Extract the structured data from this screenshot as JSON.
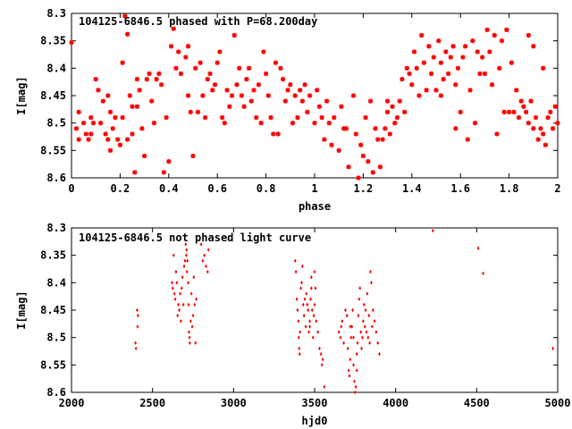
{
  "colors": {
    "points": "#ff0000",
    "axes": "#000000",
    "background": "#ffffff"
  },
  "chart_data": [
    {
      "type": "scatter",
      "title": "104125-6846.5 phased with P=68.200day",
      "xlabel": "phase",
      "ylabel": "I[mag]",
      "xlim": [
        0,
        2
      ],
      "ylim": [
        8.3,
        8.6
      ],
      "y_inverted": true,
      "grid": false,
      "marker": "star",
      "xticks": [
        "0",
        "0.2",
        "0.4",
        "0.6",
        "0.8",
        "1",
        "1.2",
        "1.4",
        "1.6",
        "1.8",
        "2"
      ],
      "yticks": [
        "8.3",
        "8.35",
        "8.4",
        "8.45",
        "8.5",
        "8.55",
        "8.6"
      ],
      "points": [
        [
          0.0,
          8.353
        ],
        [
          0.02,
          8.51
        ],
        [
          0.03,
          8.53
        ],
        [
          0.03,
          8.48
        ],
        [
          0.05,
          8.5
        ],
        [
          0.06,
          8.52
        ],
        [
          0.07,
          8.53
        ],
        [
          0.08,
          8.49
        ],
        [
          0.09,
          8.5
        ],
        [
          0.1,
          8.42
        ],
        [
          0.11,
          8.44
        ],
        [
          0.12,
          8.5
        ],
        [
          0.13,
          8.46
        ],
        [
          0.14,
          8.52
        ],
        [
          0.15,
          8.53
        ],
        [
          0.16,
          8.55
        ],
        [
          0.16,
          8.48
        ],
        [
          0.17,
          8.51
        ],
        [
          0.18,
          8.49
        ],
        [
          0.19,
          8.53
        ],
        [
          0.2,
          8.54
        ],
        [
          0.21,
          8.49
        ],
        [
          0.21,
          8.39
        ],
        [
          0.22,
          8.305
        ],
        [
          0.23,
          8.338
        ],
        [
          0.23,
          8.53
        ],
        [
          0.24,
          8.45
        ],
        [
          0.25,
          8.47
        ],
        [
          0.25,
          8.52
        ],
        [
          0.26,
          8.59
        ],
        [
          0.27,
          8.47
        ],
        [
          0.27,
          8.42
        ],
        [
          0.28,
          8.44
        ],
        [
          0.29,
          8.51
        ],
        [
          0.3,
          8.56
        ],
        [
          0.31,
          8.42
        ],
        [
          0.32,
          8.41
        ],
        [
          0.33,
          8.46
        ],
        [
          0.34,
          8.5
        ],
        [
          0.35,
          8.42
        ],
        [
          0.36,
          8.41
        ],
        [
          0.37,
          8.43
        ],
        [
          0.38,
          8.59
        ],
        [
          0.39,
          8.49
        ],
        [
          0.4,
          8.57
        ],
        [
          0.41,
          8.36
        ],
        [
          0.42,
          8.328
        ],
        [
          0.43,
          8.4
        ],
        [
          0.44,
          8.37
        ],
        [
          0.45,
          8.41
        ],
        [
          0.47,
          8.38
        ],
        [
          0.48,
          8.36
        ],
        [
          0.49,
          8.48
        ],
        [
          0.5,
          8.56
        ],
        [
          0.51,
          8.4
        ],
        [
          0.52,
          8.48
        ],
        [
          0.53,
          8.39
        ],
        [
          0.54,
          8.45
        ],
        [
          0.55,
          8.49
        ],
        [
          0.56,
          8.42
        ],
        [
          0.57,
          8.41
        ],
        [
          0.58,
          8.44
        ],
        [
          0.59,
          8.43
        ],
        [
          0.6,
          8.39
        ],
        [
          0.61,
          8.37
        ],
        [
          0.62,
          8.49
        ],
        [
          0.63,
          8.5
        ],
        [
          0.64,
          8.44
        ],
        [
          0.65,
          8.47
        ],
        [
          0.66,
          8.45
        ],
        [
          0.67,
          8.34
        ],
        [
          0.68,
          8.43
        ],
        [
          0.69,
          8.4
        ],
        [
          0.7,
          8.45
        ],
        [
          0.71,
          8.47
        ],
        [
          0.72,
          8.42
        ],
        [
          0.73,
          8.4
        ],
        [
          0.74,
          8.46
        ],
        [
          0.75,
          8.44
        ],
        [
          0.76,
          8.49
        ],
        [
          0.77,
          8.43
        ],
        [
          0.78,
          8.5
        ],
        [
          0.79,
          8.37
        ],
        [
          0.8,
          8.41
        ],
        [
          0.81,
          8.45
        ],
        [
          0.82,
          8.49
        ],
        [
          0.83,
          8.52
        ],
        [
          0.84,
          8.39
        ],
        [
          0.85,
          8.52
        ],
        [
          0.86,
          8.4
        ],
        [
          0.87,
          8.42
        ],
        [
          0.88,
          8.46
        ],
        [
          0.89,
          8.44
        ],
        [
          0.9,
          8.43
        ],
        [
          0.91,
          8.5
        ],
        [
          0.92,
          8.45
        ],
        [
          0.93,
          8.49
        ],
        [
          0.94,
          8.44
        ],
        [
          0.95,
          8.46
        ],
        [
          0.96,
          8.43
        ],
        [
          0.97,
          8.48
        ],
        [
          0.98,
          8.45
        ],
        [
          1.0,
          8.5
        ],
        [
          1.01,
          8.44
        ],
        [
          1.02,
          8.47
        ],
        [
          1.03,
          8.49
        ],
        [
          1.04,
          8.53
        ],
        [
          1.05,
          8.46
        ],
        [
          1.06,
          8.5
        ],
        [
          1.07,
          8.54
        ],
        [
          1.08,
          8.49
        ],
        [
          1.1,
          8.55
        ],
        [
          1.11,
          8.47
        ],
        [
          1.13,
          8.51
        ],
        [
          1.14,
          8.58
        ],
        [
          1.16,
          8.45
        ],
        [
          1.17,
          8.52
        ],
        [
          1.18,
          8.6
        ],
        [
          1.19,
          8.54
        ],
        [
          1.2,
          8.56
        ],
        [
          1.21,
          8.49
        ],
        [
          1.22,
          8.57
        ],
        [
          1.23,
          8.46
        ],
        [
          1.24,
          8.59
        ],
        [
          1.25,
          8.51
        ],
        [
          1.26,
          8.53
        ],
        [
          1.27,
          8.58
        ],
        [
          1.28,
          8.53
        ],
        [
          1.29,
          8.51
        ],
        [
          1.3,
          8.48
        ],
        [
          1.31,
          8.52
        ],
        [
          1.32,
          8.47
        ],
        [
          1.33,
          8.5
        ],
        [
          1.34,
          8.49
        ],
        [
          1.35,
          8.46
        ],
        [
          1.36,
          8.42
        ],
        [
          1.37,
          8.48
        ],
        [
          1.38,
          8.4
        ],
        [
          1.39,
          8.41
        ],
        [
          1.4,
          8.43
        ],
        [
          1.41,
          8.37
        ],
        [
          1.42,
          8.4
        ],
        [
          1.43,
          8.45
        ],
        [
          1.44,
          8.34
        ],
        [
          1.45,
          8.39
        ],
        [
          1.46,
          8.44
        ],
        [
          1.47,
          8.36
        ],
        [
          1.48,
          8.41
        ],
        [
          1.49,
          8.38
        ],
        [
          1.5,
          8.44
        ],
        [
          1.51,
          8.35
        ],
        [
          1.52,
          8.39
        ],
        [
          1.53,
          8.42
        ],
        [
          1.54,
          8.37
        ],
        [
          1.55,
          8.41
        ],
        [
          1.56,
          8.38
        ],
        [
          1.57,
          8.36
        ],
        [
          1.58,
          8.43
        ],
        [
          1.59,
          8.4
        ],
        [
          1.6,
          8.48
        ],
        [
          1.61,
          8.38
        ],
        [
          1.62,
          8.36
        ],
        [
          1.63,
          8.53
        ],
        [
          1.64,
          8.44
        ],
        [
          1.65,
          8.35
        ],
        [
          1.66,
          8.5
        ],
        [
          1.67,
          8.37
        ],
        [
          1.68,
          8.41
        ],
        [
          1.69,
          8.38
        ],
        [
          1.7,
          8.41
        ],
        [
          1.71,
          8.33
        ],
        [
          1.72,
          8.37
        ],
        [
          1.73,
          8.43
        ],
        [
          1.74,
          8.34
        ],
        [
          1.75,
          8.52
        ],
        [
          1.76,
          8.4
        ],
        [
          1.77,
          8.35
        ],
        [
          1.78,
          8.48
        ],
        [
          1.79,
          8.33
        ],
        [
          1.8,
          8.48
        ],
        [
          1.81,
          8.39
        ],
        [
          1.82,
          8.48
        ],
        [
          1.83,
          8.44
        ],
        [
          1.84,
          8.49
        ],
        [
          1.85,
          8.46
        ],
        [
          1.86,
          8.47
        ],
        [
          1.87,
          8.48
        ],
        [
          1.88,
          8.5
        ],
        [
          1.89,
          8.46
        ],
        [
          1.9,
          8.51
        ],
        [
          1.91,
          8.49
        ],
        [
          1.92,
          8.53
        ],
        [
          1.93,
          8.51
        ],
        [
          1.94,
          8.52
        ],
        [
          1.95,
          8.54
        ],
        [
          1.96,
          8.49
        ],
        [
          1.97,
          8.48
        ],
        [
          1.98,
          8.51
        ],
        [
          1.99,
          8.47
        ],
        [
          2.0,
          8.5
        ],
        [
          1.9,
          8.36
        ],
        [
          1.94,
          8.4
        ],
        [
          1.88,
          8.34
        ],
        [
          1.58,
          8.51
        ],
        [
          1.3,
          8.46
        ],
        [
          1.12,
          8.51
        ],
        [
          0.48,
          8.45
        ],
        [
          0.15,
          8.45
        ],
        [
          0.08,
          8.52
        ],
        [
          1.52,
          8.45
        ]
      ]
    },
    {
      "type": "scatter",
      "title": "104125-6846.5 not phased light curve",
      "xlabel": "hjd0",
      "ylabel": "I[mag]",
      "xlim": [
        2000,
        5000
      ],
      "ylim": [
        8.3,
        8.6
      ],
      "y_inverted": true,
      "grid": false,
      "marker": "dot",
      "xticks": [
        "2000",
        "2500",
        "3000",
        "3500",
        "4000",
        "4500",
        "5000"
      ],
      "yticks": [
        "8.3",
        "8.35",
        "8.4",
        "8.45",
        "8.5",
        "8.55",
        "8.6"
      ],
      "points": [
        [
          2395,
          8.51
        ],
        [
          2398,
          8.52
        ],
        [
          2405,
          8.45
        ],
        [
          2410,
          8.46
        ],
        [
          2408,
          8.48
        ],
        [
          2620,
          8.4
        ],
        [
          2625,
          8.41
        ],
        [
          2630,
          8.35
        ],
        [
          2635,
          8.42
        ],
        [
          2640,
          8.43
        ],
        [
          2645,
          8.38
        ],
        [
          2650,
          8.4
        ],
        [
          2655,
          8.46
        ],
        [
          2660,
          8.44
        ],
        [
          2665,
          8.45
        ],
        [
          2670,
          8.42
        ],
        [
          2675,
          8.47
        ],
        [
          2680,
          8.41
        ],
        [
          2685,
          8.39
        ],
        [
          2690,
          8.44
        ],
        [
          2695,
          8.37
        ],
        [
          2700,
          8.36
        ],
        [
          2705,
          8.33
        ],
        [
          2708,
          8.35
        ],
        [
          2710,
          8.34
        ],
        [
          2712,
          8.38
        ],
        [
          2715,
          8.36
        ],
        [
          2720,
          8.4
        ],
        [
          2722,
          8.44
        ],
        [
          2725,
          8.49
        ],
        [
          2728,
          8.5
        ],
        [
          2730,
          8.51
        ],
        [
          2735,
          8.47
        ],
        [
          2740,
          8.42
        ],
        [
          2745,
          8.48
        ],
        [
          2750,
          8.46
        ],
        [
          2755,
          8.39
        ],
        [
          2760,
          8.44
        ],
        [
          2765,
          8.51
        ],
        [
          2770,
          8.43
        ],
        [
          2800,
          8.33
        ],
        [
          2810,
          8.36
        ],
        [
          2820,
          8.35
        ],
        [
          2830,
          8.37
        ],
        [
          2840,
          8.38
        ],
        [
          2845,
          8.34
        ],
        [
          3380,
          8.36
        ],
        [
          3385,
          8.38
        ],
        [
          3390,
          8.43
        ],
        [
          3395,
          8.45
        ],
        [
          3400,
          8.47
        ],
        [
          3402,
          8.5
        ],
        [
          3405,
          8.52
        ],
        [
          3408,
          8.53
        ],
        [
          3410,
          8.49
        ],
        [
          3415,
          8.41
        ],
        [
          3420,
          8.4
        ],
        [
          3425,
          8.37
        ],
        [
          3430,
          8.44
        ],
        [
          3435,
          8.46
        ],
        [
          3440,
          8.43
        ],
        [
          3445,
          8.48
        ],
        [
          3450,
          8.42
        ],
        [
          3455,
          8.44
        ],
        [
          3460,
          8.45
        ],
        [
          3465,
          8.49
        ],
        [
          3470,
          8.47
        ],
        [
          3475,
          8.43
        ],
        [
          3480,
          8.39
        ],
        [
          3485,
          8.45
        ],
        [
          3490,
          8.5
        ],
        [
          3495,
          8.46
        ],
        [
          3500,
          8.44
        ],
        [
          3505,
          8.41
        ],
        [
          3510,
          8.47
        ],
        [
          3520,
          8.49
        ],
        [
          3530,
          8.52
        ],
        [
          3540,
          8.53
        ],
        [
          3545,
          8.55
        ],
        [
          3550,
          8.54
        ],
        [
          3560,
          8.59
        ],
        [
          3470,
          8.48
        ],
        [
          3480,
          8.41
        ],
        [
          3500,
          8.38
        ],
        [
          3650,
          8.49
        ],
        [
          3660,
          8.5
        ],
        [
          3665,
          8.48
        ],
        [
          3670,
          8.47
        ],
        [
          3680,
          8.51
        ],
        [
          3690,
          8.45
        ],
        [
          3700,
          8.46
        ],
        [
          3705,
          8.52
        ],
        [
          3710,
          8.56
        ],
        [
          3715,
          8.57
        ],
        [
          3720,
          8.54
        ],
        [
          3725,
          8.5
        ],
        [
          3730,
          8.48
        ],
        [
          3735,
          8.45
        ],
        [
          3740,
          8.55
        ],
        [
          3745,
          8.58
        ],
        [
          3750,
          8.6
        ],
        [
          3755,
          8.59
        ],
        [
          3760,
          8.53
        ],
        [
          3765,
          8.51
        ],
        [
          3770,
          8.46
        ],
        [
          3775,
          8.43
        ],
        [
          3780,
          8.41
        ],
        [
          3785,
          8.49
        ],
        [
          3790,
          8.52
        ],
        [
          3795,
          8.5
        ],
        [
          3800,
          8.47
        ],
        [
          3805,
          8.44
        ],
        [
          3810,
          8.48
        ],
        [
          3815,
          8.45
        ],
        [
          3820,
          8.49
        ],
        [
          3825,
          8.42
        ],
        [
          3830,
          8.5
        ],
        [
          3835,
          8.46
        ],
        [
          3840,
          8.51
        ],
        [
          3845,
          8.38
        ],
        [
          3850,
          8.4
        ],
        [
          3855,
          8.48
        ],
        [
          3860,
          8.45
        ],
        [
          3870,
          8.47
        ],
        [
          3880,
          8.49
        ],
        [
          3890,
          8.51
        ],
        [
          3900,
          8.53
        ],
        [
          3760,
          8.56
        ],
        [
          3740,
          8.5
        ],
        [
          3720,
          8.48
        ],
        [
          4230,
          8.305
        ],
        [
          4510,
          8.337
        ],
        [
          4540,
          8.383
        ],
        [
          4970,
          8.52
        ]
      ]
    }
  ]
}
